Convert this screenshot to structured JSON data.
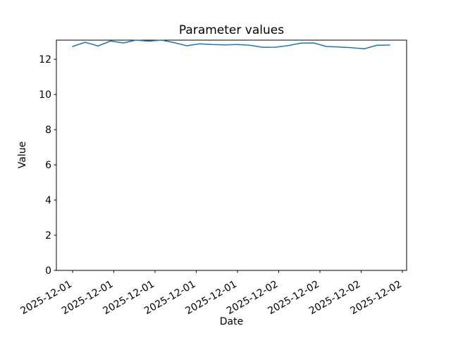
{
  "figure": {
    "background_color": "#ffffff",
    "text_color": "#000000"
  },
  "chart_data": {
    "type": "line",
    "title": "Parameter values",
    "xlabel": "Date",
    "ylabel": "Value",
    "ylim": [
      0,
      13.09
    ],
    "y_ticks": [
      0,
      2,
      4,
      6,
      8,
      10,
      12
    ],
    "x_tick_labels": [
      "2025-12-01",
      "2025-12-01",
      "2025-12-01",
      "2025-12-01",
      "2025-12-01",
      "2025-12-02",
      "2025-12-02",
      "2025-12-02",
      "2025-12-02"
    ],
    "x_tick_rotation_deg": 30,
    "grid": false,
    "legend": "none",
    "line_color": "#1f77b4",
    "axis_color": "#000000",
    "series": [
      {
        "name": "Parameter values",
        "values": [
          12.73,
          12.97,
          12.76,
          13.04,
          12.93,
          13.09,
          13.03,
          13.09,
          12.95,
          12.77,
          12.88,
          12.84,
          12.82,
          12.84,
          12.8,
          12.68,
          12.69,
          12.78,
          12.92,
          12.93,
          12.73,
          12.7,
          12.66,
          12.6,
          12.8,
          12.81
        ]
      }
    ]
  }
}
